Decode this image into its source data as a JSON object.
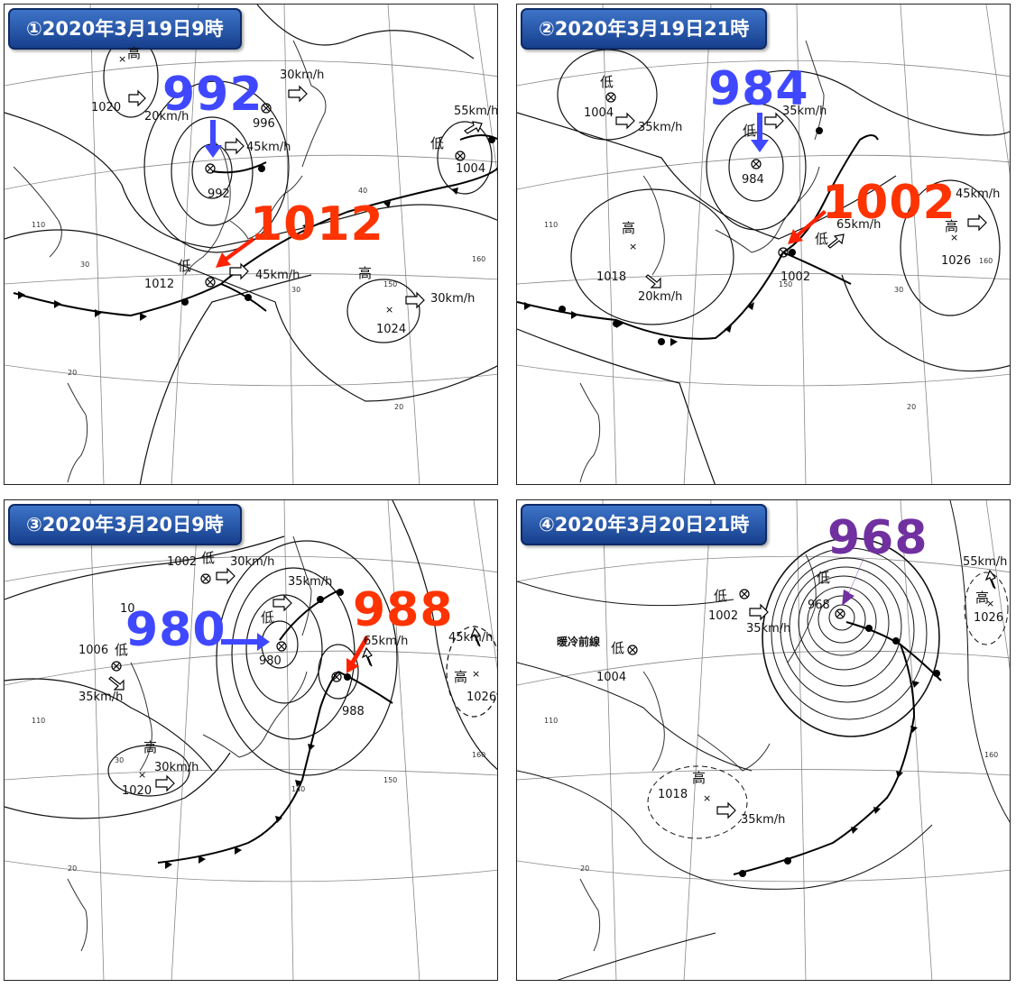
{
  "colors": {
    "blue": "#3f48ff",
    "red": "#ff3300",
    "purple": "#7030a0",
    "badge": "#2a5bb0"
  },
  "symbols": {
    "low": "低",
    "high": "高",
    "speed_icon": "hollow-arrow-icon",
    "low_center": "circle-cross-icon",
    "high_center": "x-mark-icon"
  },
  "panels": [
    {
      "title": "①2020年3月19日9時",
      "callouts": [
        {
          "value": "992",
          "color": "blue"
        },
        {
          "value": "1012",
          "color": "red"
        }
      ],
      "pressure_labels": [
        "1020",
        "996",
        "992",
        "1012",
        "1004",
        "1024"
      ],
      "speeds": [
        "20km/h",
        "30km/h",
        "45km/h",
        "45km/h",
        "55km/h",
        "30km/h"
      ],
      "degree_labels": [
        "110",
        "40",
        "30",
        "150",
        "160",
        "20",
        "30",
        "20"
      ]
    },
    {
      "title": "②2020年3月19日21時",
      "callouts": [
        {
          "value": "984",
          "color": "blue"
        },
        {
          "value": "1002",
          "color": "red"
        }
      ],
      "pressure_labels": [
        "1004",
        "984",
        "1018",
        "1002",
        "1026"
      ],
      "speeds": [
        "35km/h",
        "35km/h",
        "20km/h",
        "65km/h",
        "45km/h"
      ],
      "degree_labels": [
        "110",
        "150",
        "160",
        "30",
        "20"
      ]
    },
    {
      "title": "③2020年3月20日9時",
      "callouts": [
        {
          "value": "980",
          "color": "blue"
        },
        {
          "value": "988",
          "color": "red"
        }
      ],
      "pressure_labels": [
        "1002",
        "1006",
        "980",
        "988",
        "1020",
        "1026",
        "10"
      ],
      "speeds": [
        "30km/h",
        "35km/h",
        "35km/h",
        "65km/h",
        "45km/h",
        "30km/h"
      ],
      "degree_labels": [
        "110",
        "30",
        "140",
        "150",
        "160",
        "20"
      ]
    },
    {
      "title": "④2020年3月20日21時",
      "callouts": [
        {
          "value": "968",
          "color": "purple"
        }
      ],
      "pressure_labels": [
        "968",
        "1002",
        "1004",
        "1018",
        "1026"
      ],
      "speeds": [
        "35km/h",
        "35km/h",
        "55km/h"
      ],
      "annotation": "暖冷前線",
      "degree_labels": [
        "110",
        "160",
        "20"
      ]
    }
  ]
}
